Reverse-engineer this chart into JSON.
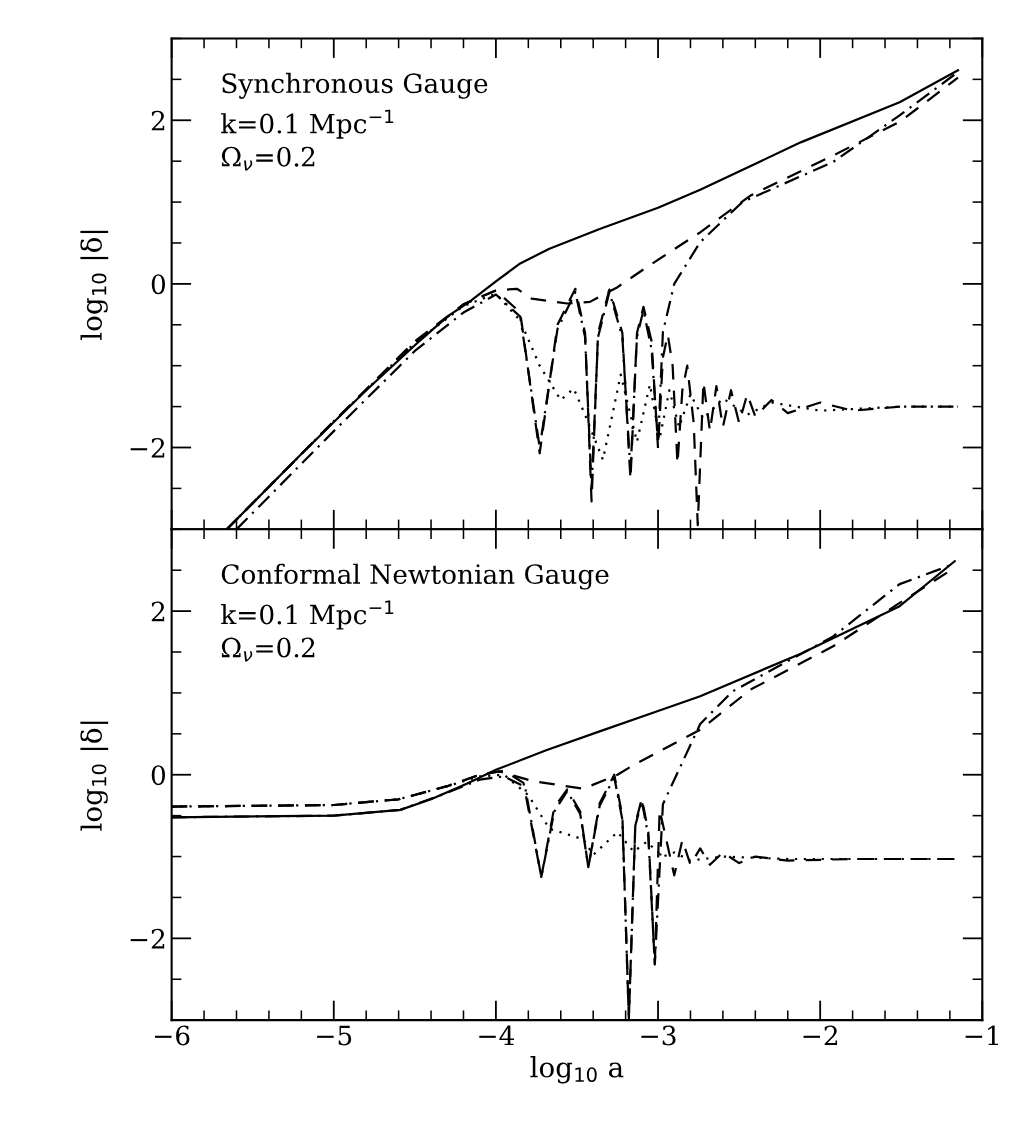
{
  "chart_data": [
    {
      "type": "line",
      "ylabel": "log$_{10}$ |δ|",
      "xlim": [
        -6,
        -1
      ],
      "ylim": [
        -3,
        3
      ],
      "xticks": [
        -6,
        -5,
        -4,
        -3,
        -2,
        -1
      ],
      "yticks": [
        -2,
        0,
        2
      ],
      "tick_labels": "y",
      "grid": false,
      "annotations": [
        "Synchronous Gauge",
        "k=0.1 Mpc$^{−1}$",
        "Ω$_{ν}$=0.2"
      ],
      "series": [
        {
          "color": "#000000",
          "line_style": "solid",
          "x": [
            -5.66,
            -5.2,
            -4.8,
            -4.5,
            -4.3,
            -4.15,
            -4.0,
            -3.85,
            -3.67,
            -3.36,
            -3.0,
            -2.74,
            -2.12,
            -1.51,
            -1.15
          ],
          "values": [
            -3,
            -2.08,
            -1.3,
            -0.75,
            -0.4,
            -0.2,
            0.03,
            0.25,
            0.43,
            0.67,
            0.93,
            1.15,
            1.73,
            2.22,
            2.61
          ]
        },
        {
          "color": "#000000",
          "line_style": "dashdot",
          "x": [
            -5.6,
            -5.0,
            -4.5,
            -4.2,
            -4.0,
            -3.85,
            -3.73,
            -3.62,
            -3.51,
            -3.45,
            -3.41,
            -3.37,
            -3.3,
            -3.22,
            -3.17,
            -3.13,
            -3.09,
            -3.04,
            -3.0,
            -2.97,
            -2.9,
            -2.74,
            -2.48,
            -1.92,
            -1.51,
            -1.15
          ],
          "values": [
            -3,
            -1.8,
            -0.82,
            -0.35,
            -0.13,
            -0.4,
            -2.0,
            -0.55,
            -0.1,
            -0.65,
            -2.5,
            -0.65,
            -0.1,
            -0.65,
            -2.3,
            -0.65,
            -0.32,
            -0.8,
            -1.95,
            -0.59,
            0.0,
            0.51,
            1.0,
            1.49,
            2.06,
            2.59
          ]
        },
        {
          "color": "#000000",
          "line_style": "dashed",
          "x": [
            -5.66,
            -5.0,
            -4.5,
            -4.2,
            -4.0,
            -3.85,
            -3.73,
            -3.62,
            -3.51,
            -3.45,
            -3.41,
            -3.37,
            -3.3,
            -3.22,
            -3.17,
            -3.13,
            -3.09,
            -3.04,
            -3.0,
            -2.97,
            -2.94,
            -2.91,
            -2.88,
            -2.85,
            -2.82,
            -2.78,
            -2.755,
            -2.72,
            -2.68,
            -2.64,
            -2.6,
            -2.55,
            -2.5,
            -2.45,
            -2.4,
            -2.3,
            -2.2,
            -2.0,
            -1.8,
            -1.5,
            -1.15
          ],
          "values": [
            -3,
            -1.68,
            -0.7,
            -0.25,
            -0.08,
            -0.35,
            -2.07,
            -0.5,
            -0.06,
            -0.6,
            -2.66,
            -0.6,
            -0.07,
            -0.6,
            -2.39,
            -0.6,
            -0.28,
            -0.7,
            -2.01,
            -0.9,
            -0.62,
            -1.0,
            -2.2,
            -1.3,
            -1.0,
            -1.7,
            -2.95,
            -1.2,
            -1.8,
            -1.25,
            -1.75,
            -1.3,
            -1.7,
            -1.35,
            -1.62,
            -1.42,
            -1.58,
            -1.45,
            -1.55,
            -1.5,
            -1.5
          ]
        },
        {
          "color": "#000000",
          "line_style": "dotted",
          "x": [
            -5.66,
            -5.0,
            -4.5,
            -4.2,
            -4.0,
            -3.85,
            -3.73,
            -3.6,
            -3.52,
            -3.45,
            -3.34,
            -3.23,
            -3.13,
            -3.05,
            -2.99,
            -2.93,
            -2.87,
            -2.8,
            -2.72,
            -2.6,
            -2.45,
            -2.3,
            -2.0,
            -1.5,
            -1.15
          ],
          "values": [
            -3,
            -1.68,
            -0.72,
            -0.27,
            -0.12,
            -0.45,
            -1.0,
            -1.42,
            -1.28,
            -1.6,
            -2.15,
            -1.11,
            -1.93,
            -1.23,
            -1.89,
            -1.3,
            -1.75,
            -1.35,
            -1.65,
            -1.4,
            -1.6,
            -1.45,
            -1.55,
            -1.5,
            -1.5
          ]
        },
        {
          "color": "#000000",
          "line_style": "dashed",
          "x": [
            -5.66,
            -5.0,
            -4.5,
            -4.2,
            -4.0,
            -3.87,
            -3.78,
            -3.56,
            -3.42,
            -3.25,
            -3.05,
            -2.74,
            -2.43,
            -1.92,
            -1.51,
            -1.15
          ],
          "values": [
            -3,
            -1.68,
            -0.72,
            -0.25,
            -0.08,
            -0.06,
            -0.18,
            -0.24,
            -0.22,
            -0.04,
            0.23,
            0.63,
            1.08,
            1.57,
            1.98,
            2.52
          ]
        }
      ]
    },
    {
      "type": "line",
      "xlabel": "log$_{10}$ a",
      "ylabel": "log$_{10}$ |δ|",
      "xlim": [
        -6,
        -1
      ],
      "ylim": [
        -3,
        3
      ],
      "xticks": [
        -6,
        -5,
        -4,
        -3,
        -2,
        -1
      ],
      "yticks": [
        -2,
        0,
        2
      ],
      "grid": false,
      "annotations": [
        "Conformal Newtonian Gauge",
        "k=0.1 Mpc$^{−1}$",
        "Ω$_{ν}$=0.2"
      ],
      "series": [
        {
          "color": "#000000",
          "line_style": "solid",
          "x": [
            -6,
            -5.0,
            -4.59,
            -4.4,
            -4.18,
            -4.0,
            -3.69,
            -3.36,
            -3.0,
            -2.74,
            -2.12,
            -1.51,
            -1.17
          ],
          "values": [
            -0.52,
            -0.5,
            -0.43,
            -0.3,
            -0.11,
            0.06,
            0.3,
            0.53,
            0.78,
            0.96,
            1.48,
            2.06,
            2.61
          ]
        },
        {
          "color": "#000000",
          "line_style": "dashdot",
          "x": [
            -6,
            -5.0,
            -4.59,
            -4.3,
            -4.1,
            -3.95,
            -3.82,
            -3.72,
            -3.64,
            -3.56,
            -3.48,
            -3.43,
            -3.36,
            -3.27,
            -3.22,
            -3.18,
            -3.14,
            -3.1,
            -3.06,
            -3.02,
            -2.97,
            -2.74,
            -2.54,
            -1.92,
            -1.51,
            -1.17
          ],
          "values": [
            -0.52,
            -0.5,
            -0.43,
            -0.22,
            -0.06,
            -0.02,
            -0.15,
            -1.25,
            -0.45,
            -0.2,
            -0.48,
            -1.13,
            -0.38,
            -0.03,
            -0.55,
            -2.98,
            -0.62,
            -0.32,
            -0.75,
            -2.32,
            -0.36,
            0.62,
            1.02,
            1.69,
            2.33,
            2.58
          ]
        },
        {
          "color": "#000000",
          "line_style": "dashed",
          "x": [
            -6,
            -5.0,
            -4.6,
            -4.3,
            -4.1,
            -3.95,
            -3.83,
            -3.72,
            -3.64,
            -3.56,
            -3.48,
            -3.43,
            -3.36,
            -3.27,
            -3.22,
            -3.18,
            -3.14,
            -3.1,
            -3.06,
            -3.02,
            -2.99,
            -2.9,
            -2.85,
            -2.8,
            -2.74,
            -2.68,
            -2.6,
            -2.5,
            -2.4,
            -2.2,
            -1.8,
            -1.17
          ],
          "values": [
            -0.39,
            -0.37,
            -0.3,
            -0.14,
            0.0,
            0.05,
            -0.1,
            -1.25,
            -0.4,
            -0.18,
            -0.45,
            -1.13,
            -0.35,
            0.0,
            -0.5,
            -2.98,
            -0.6,
            -0.29,
            -0.7,
            -2.32,
            -0.43,
            -1.23,
            -0.8,
            -1.1,
            -0.9,
            -1.1,
            -0.95,
            -1.08,
            -1.0,
            -1.05,
            -1.03,
            -1.03
          ]
        },
        {
          "color": "#000000",
          "line_style": "dotted",
          "x": [
            -6,
            -5.0,
            -4.6,
            -4.3,
            -4.1,
            -3.95,
            -3.8,
            -3.67,
            -3.46,
            -3.4,
            -3.25,
            -3.15,
            -3.07,
            -2.97,
            -2.9,
            -2.8,
            -2.6,
            -2.2,
            -1.17
          ],
          "values": [
            -0.39,
            -0.37,
            -0.3,
            -0.14,
            -0.02,
            0.0,
            -0.25,
            -0.66,
            -0.79,
            -0.98,
            -0.7,
            -0.94,
            -0.82,
            -1.0,
            -0.95,
            -1.05,
            -1.0,
            -1.03,
            -1.03
          ]
        },
        {
          "color": "#000000",
          "line_style": "dashed",
          "x": [
            -6,
            -5.0,
            -4.6,
            -4.3,
            -4.1,
            -3.98,
            -3.77,
            -3.46,
            -3.25,
            -3.15,
            -2.74,
            -2.43,
            -1.92,
            -1.51,
            -1.17
          ],
          "values": [
            -0.39,
            -0.37,
            -0.3,
            -0.14,
            0.0,
            0.04,
            -0.08,
            -0.17,
            0.0,
            0.12,
            0.55,
            1.04,
            1.57,
            2.1,
            2.53
          ]
        }
      ]
    }
  ]
}
